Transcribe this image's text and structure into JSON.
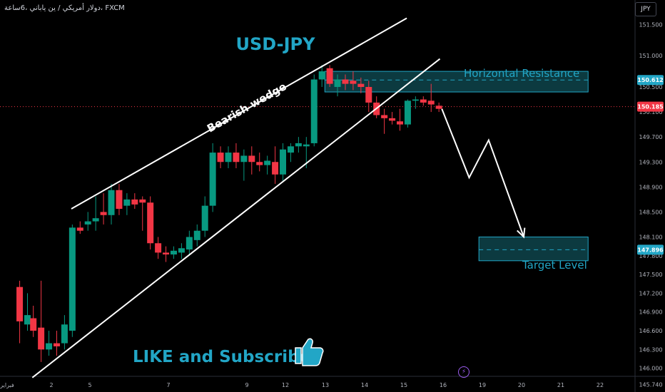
{
  "header": {
    "symbol_text": "دولار أمريكي / ين ياباني ،6ساعة، FXCM"
  },
  "currency_button": {
    "label": "JPY"
  },
  "colors": {
    "up": "#089981",
    "down": "#f23645",
    "accent": "#22a6c6",
    "zone_fill": "#0c3a40",
    "axis_text": "#b2b5be"
  },
  "chart_data": {
    "type": "candlestick",
    "symbol": "USD-JPY",
    "title": "USD-JPY",
    "y_ticks": [
      151.5,
      151.0,
      150.5,
      150.1,
      149.7,
      149.3,
      148.9,
      148.5,
      148.1,
      147.8,
      147.5,
      147.2,
      146.9,
      146.6,
      146.3,
      146.0,
      145.74
    ],
    "y_tick_labels": [
      "151.500",
      "151.000",
      "150.500",
      "150.100",
      "149.700",
      "149.300",
      "148.900",
      "148.500",
      "148.100",
      "147.800",
      "147.500",
      "147.200",
      "146.900",
      "146.600",
      "146.300",
      "146.000",
      "145.740"
    ],
    "ylim": [
      145.7,
      151.86
    ],
    "x_tick_labels": [
      "فبراير",
      "2",
      "5",
      "7",
      "9",
      "12",
      "13",
      "14",
      "15",
      "16",
      "19",
      "20",
      "21",
      "22"
    ],
    "x_tick_positions": [
      0,
      2,
      5,
      7,
      9,
      12,
      13,
      14,
      15,
      16,
      19,
      20,
      21,
      22
    ],
    "xlim": [
      0,
      23
    ],
    "price_labels": [
      {
        "label": "150.612",
        "value": 150.612
      },
      {
        "label": "150.185",
        "value": 150.185
      },
      {
        "label": "147.896",
        "value": 147.896
      }
    ],
    "candles": [
      {
        "x": 0.35,
        "o": 147.3,
        "h": 147.4,
        "l": 146.4,
        "c": 146.75
      },
      {
        "x": 0.75,
        "o": 146.7,
        "h": 147.2,
        "l": 146.6,
        "c": 146.85
      },
      {
        "x": 1.05,
        "o": 146.8,
        "h": 147.0,
        "l": 146.5,
        "c": 146.6
      },
      {
        "x": 1.45,
        "o": 146.65,
        "h": 147.4,
        "l": 146.1,
        "c": 146.3
      },
      {
        "x": 1.85,
        "o": 146.3,
        "h": 146.6,
        "l": 146.2,
        "c": 146.4
      },
      {
        "x": 2.25,
        "o": 146.4,
        "h": 146.6,
        "l": 146.2,
        "c": 146.35
      },
      {
        "x": 2.65,
        "o": 146.4,
        "h": 146.85,
        "l": 146.3,
        "c": 146.7
      },
      {
        "x": 3.05,
        "o": 146.6,
        "h": 148.3,
        "l": 146.5,
        "c": 148.25
      },
      {
        "x": 3.45,
        "o": 148.25,
        "h": 148.35,
        "l": 148.15,
        "c": 148.2
      },
      {
        "x": 3.85,
        "o": 148.3,
        "h": 148.5,
        "l": 148.2,
        "c": 148.35
      },
      {
        "x": 4.25,
        "o": 148.35,
        "h": 148.75,
        "l": 148.2,
        "c": 148.4
      },
      {
        "x": 4.65,
        "o": 148.5,
        "h": 148.8,
        "l": 148.3,
        "c": 148.45
      },
      {
        "x": 5.05,
        "o": 148.45,
        "h": 148.95,
        "l": 148.3,
        "c": 148.85
      },
      {
        "x": 5.45,
        "o": 148.85,
        "h": 148.95,
        "l": 148.45,
        "c": 148.55
      },
      {
        "x": 5.85,
        "o": 148.6,
        "h": 148.8,
        "l": 148.45,
        "c": 148.7
      },
      {
        "x": 6.25,
        "o": 148.7,
        "h": 148.8,
        "l": 148.55,
        "c": 148.62
      },
      {
        "x": 6.65,
        "o": 148.7,
        "h": 148.75,
        "l": 148.2,
        "c": 148.65
      },
      {
        "x": 7.05,
        "o": 148.65,
        "h": 148.75,
        "l": 147.9,
        "c": 148.0
      },
      {
        "x": 7.45,
        "o": 148.0,
        "h": 148.1,
        "l": 147.75,
        "c": 147.85
      },
      {
        "x": 7.85,
        "o": 147.85,
        "h": 147.95,
        "l": 147.7,
        "c": 147.82
      },
      {
        "x": 8.25,
        "o": 147.82,
        "h": 147.95,
        "l": 147.75,
        "c": 147.88
      },
      {
        "x": 8.65,
        "o": 147.85,
        "h": 148.0,
        "l": 147.75,
        "c": 147.92
      },
      {
        "x": 9.05,
        "o": 147.9,
        "h": 148.2,
        "l": 147.8,
        "c": 148.1
      },
      {
        "x": 9.45,
        "o": 148.05,
        "h": 148.3,
        "l": 147.95,
        "c": 148.2
      },
      {
        "x": 9.85,
        "o": 148.2,
        "h": 148.75,
        "l": 148.1,
        "c": 148.6
      },
      {
        "x": 10.25,
        "o": 148.6,
        "h": 149.6,
        "l": 148.5,
        "c": 149.45
      },
      {
        "x": 10.65,
        "o": 149.45,
        "h": 149.55,
        "l": 149.2,
        "c": 149.3
      },
      {
        "x": 11.05,
        "o": 149.3,
        "h": 149.55,
        "l": 149.2,
        "c": 149.45
      },
      {
        "x": 11.45,
        "o": 149.45,
        "h": 149.6,
        "l": 149.2,
        "c": 149.3
      },
      {
        "x": 11.85,
        "o": 149.3,
        "h": 149.5,
        "l": 149.0,
        "c": 149.4
      },
      {
        "x": 12.25,
        "o": 149.4,
        "h": 149.55,
        "l": 149.1,
        "c": 149.3
      },
      {
        "x": 12.65,
        "o": 149.3,
        "h": 149.45,
        "l": 149.15,
        "c": 149.25
      },
      {
        "x": 13.05,
        "o": 149.25,
        "h": 149.4,
        "l": 149.1,
        "c": 149.32
      },
      {
        "x": 13.45,
        "o": 149.3,
        "h": 149.55,
        "l": 148.95,
        "c": 149.1
      },
      {
        "x": 13.85,
        "o": 149.1,
        "h": 149.6,
        "l": 149.0,
        "c": 149.5
      },
      {
        "x": 14.25,
        "o": 149.45,
        "h": 149.6,
        "l": 149.3,
        "c": 149.55
      },
      {
        "x": 14.65,
        "o": 149.55,
        "h": 149.7,
        "l": 149.45,
        "c": 149.6
      },
      {
        "x": 15.05,
        "o": 149.55,
        "h": 149.7,
        "l": 149.2,
        "c": 149.58
      },
      {
        "x": 15.45,
        "o": 149.6,
        "h": 150.7,
        "l": 149.55,
        "c": 150.62
      },
      {
        "x": 15.85,
        "o": 150.62,
        "h": 150.85,
        "l": 150.5,
        "c": 150.75
      },
      {
        "x": 16.25,
        "o": 150.8,
        "h": 150.85,
        "l": 150.5,
        "c": 150.55
      },
      {
        "x": 16.65,
        "o": 150.5,
        "h": 150.7,
        "l": 150.35,
        "c": 150.62
      },
      {
        "x": 17.05,
        "o": 150.62,
        "h": 150.7,
        "l": 150.45,
        "c": 150.55
      },
      {
        "x": 17.45,
        "o": 150.6,
        "h": 150.75,
        "l": 150.45,
        "c": 150.55
      },
      {
        "x": 17.85,
        "o": 150.55,
        "h": 150.65,
        "l": 150.4,
        "c": 150.5
      },
      {
        "x": 18.25,
        "o": 150.5,
        "h": 150.6,
        "l": 150.1,
        "c": 150.25
      },
      {
        "x": 18.65,
        "o": 150.25,
        "h": 150.35,
        "l": 150.0,
        "c": 150.05
      },
      {
        "x": 19.05,
        "o": 150.05,
        "h": 150.15,
        "l": 149.75,
        "c": 150.0
      },
      {
        "x": 19.45,
        "o": 150.0,
        "h": 150.1,
        "l": 149.9,
        "c": 149.96
      },
      {
        "x": 19.85,
        "o": 149.95,
        "h": 150.15,
        "l": 149.8,
        "c": 149.9
      },
      {
        "x": 20.25,
        "o": 149.9,
        "h": 150.3,
        "l": 149.85,
        "c": 150.28
      },
      {
        "x": 20.65,
        "o": 150.28,
        "h": 150.35,
        "l": 150.15,
        "c": 150.3
      },
      {
        "x": 21.05,
        "o": 150.3,
        "h": 150.35,
        "l": 150.2,
        "c": 150.25
      },
      {
        "x": 21.45,
        "o": 150.28,
        "h": 150.55,
        "l": 150.1,
        "c": 150.22
      },
      {
        "x": 21.85,
        "o": 150.2,
        "h": 150.25,
        "l": 150.1,
        "c": 150.15
      }
    ],
    "annotations": {
      "pattern_label": "Bearish wedge",
      "resistance_label": "Horizontal Resistance",
      "target_label": "Target Level",
      "promo_text": "LIKE and Subscribe",
      "wedge_upper": [
        [
          3.0,
          148.55
        ],
        [
          20.2,
          151.6
        ]
      ],
      "wedge_lower": [
        [
          1.0,
          145.85
        ],
        [
          21.9,
          150.95
        ]
      ],
      "resistance_zone": {
        "x0": 16.0,
        "x1": 29.5,
        "top": 150.75,
        "bottom": 150.42,
        "mid": 150.612
      },
      "target_zone": {
        "x0": 23.9,
        "x1": 29.5,
        "top": 148.1,
        "bottom": 147.72,
        "mid": 147.896
      },
      "projection": [
        [
          22.0,
          150.15
        ],
        [
          23.4,
          149.05
        ],
        [
          24.4,
          149.65
        ],
        [
          26.2,
          148.1
        ]
      ],
      "current_price_line": 150.185
    }
  }
}
